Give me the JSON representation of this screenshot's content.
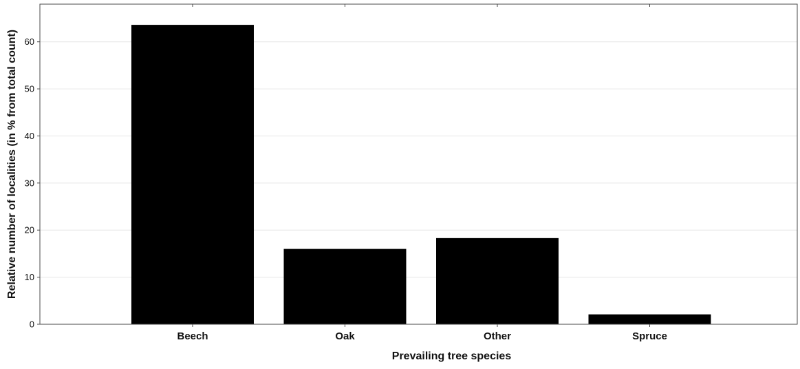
{
  "chart_data": {
    "type": "bar",
    "title": "",
    "xlabel": "Prevailing tree species",
    "ylabel": "Relative number of localities (in % from total count)",
    "categories": [
      "Beech",
      "Oak",
      "Other",
      "Spruce"
    ],
    "values": [
      63.6,
      16.0,
      18.3,
      2.1
    ],
    "ylim": [
      0,
      68
    ],
    "yticks": [
      0,
      10,
      20,
      30,
      40,
      50,
      60
    ],
    "grid": true,
    "legend": "none",
    "colors": {
      "bar": "#000000",
      "grid": "#e6e6e6",
      "axis": "#4a4a4a"
    }
  }
}
